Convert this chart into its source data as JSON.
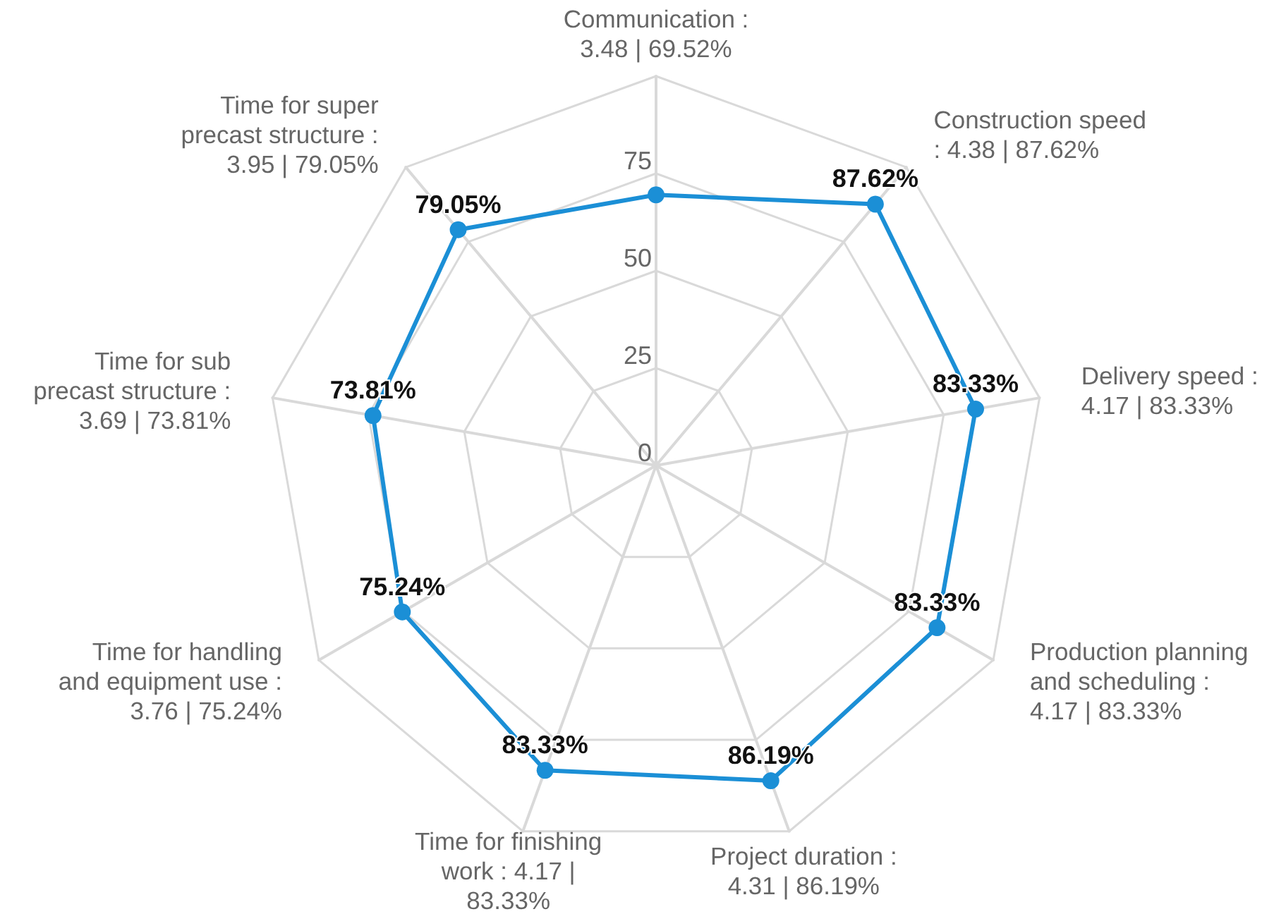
{
  "chart_data": {
    "type": "radar",
    "categories": [
      "Communication : 3.48 | 69.52%",
      "Construction speed : 4.38 | 87.62%",
      "Delivery speed : 4.17 | 83.33%",
      "Production planning and scheduling : 4.17 | 83.33%",
      "Project duration : 4.31 | 86.19%",
      "Time for finishing work : 4.17 | 83.33%",
      "Time for handling and equipment use : 3.76 | 75.24%",
      "Time for sub precast structure : 3.69 | 73.81%",
      "Time for super precast structure : 3.95 | 79.05%"
    ],
    "values": [
      69.52,
      87.62,
      83.33,
      83.33,
      86.19,
      83.33,
      75.24,
      73.81,
      79.05
    ],
    "value_labels": [
      null,
      "87.62%",
      "83.33%",
      "83.33%",
      "86.19%",
      "83.33%",
      "75.24%",
      "73.81%",
      "79.05%"
    ],
    "color": "#1b8fd6",
    "ylim": [
      0,
      100
    ],
    "yticks": [
      0,
      25,
      50,
      75
    ],
    "grid": true,
    "marker": "circle",
    "line_style": "solid"
  }
}
